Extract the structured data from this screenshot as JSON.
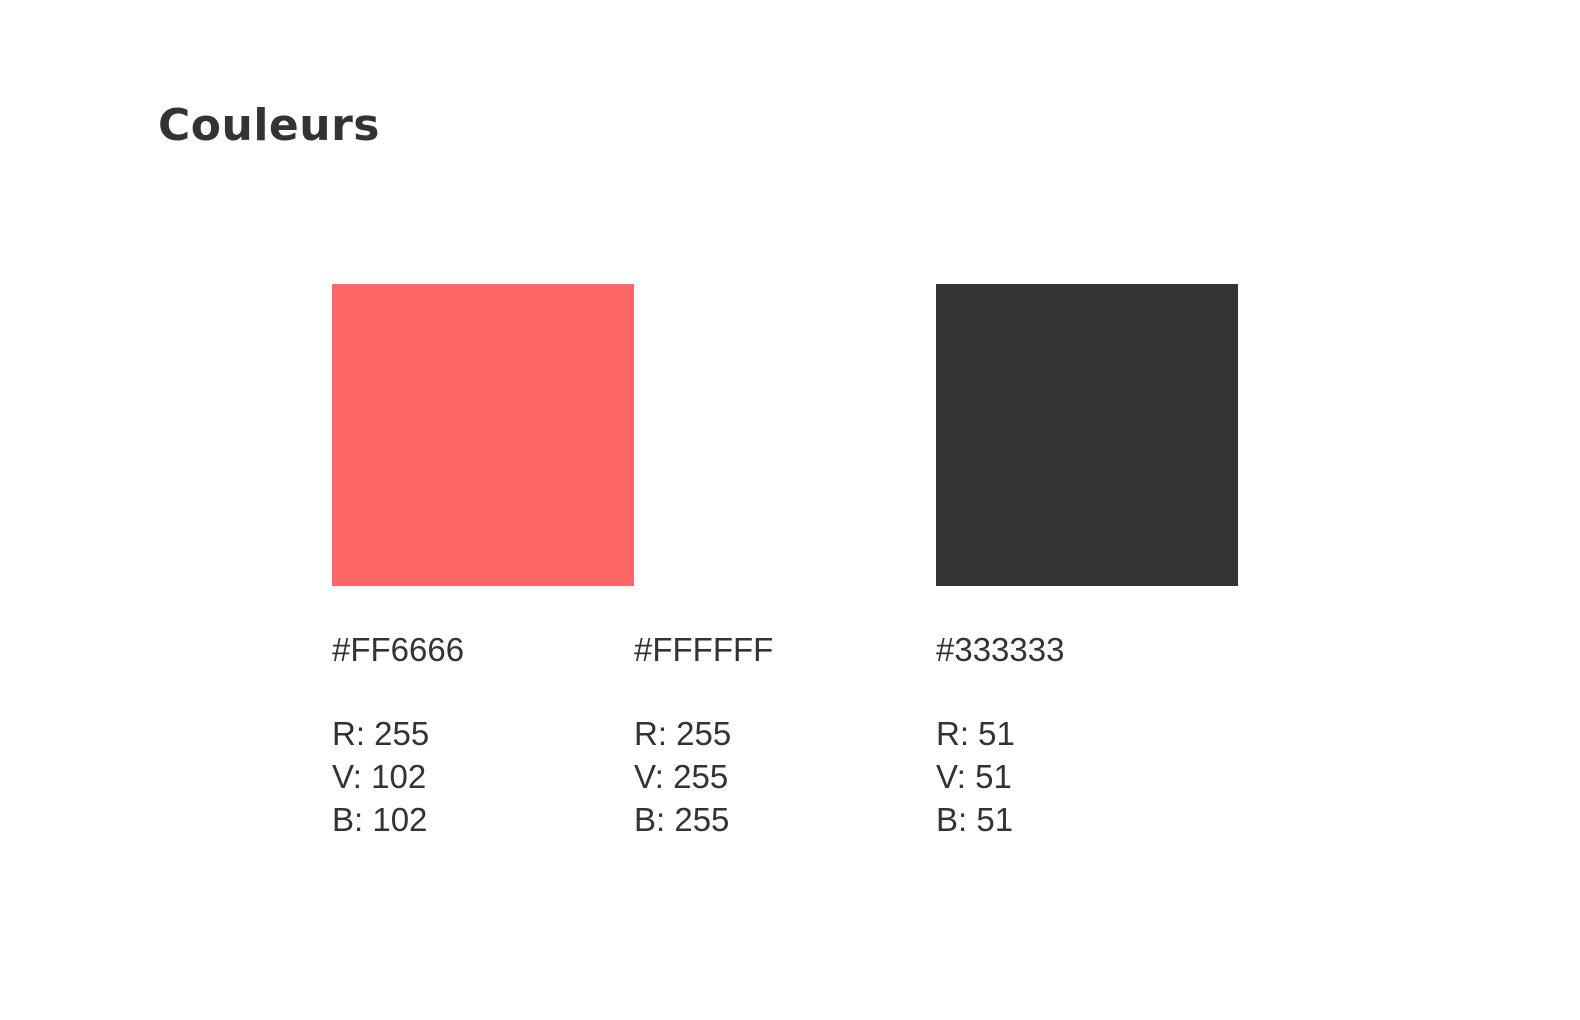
{
  "title": "Couleurs",
  "swatches": [
    {
      "color": "#FF6666",
      "hex": "#FF6666",
      "r": "R: 255",
      "v": "V: 102",
      "b": "B: 102"
    },
    {
      "color": "#FFFFFF",
      "hex": "#FFFFFF",
      "r": "R: 255",
      "v": "V: 255",
      "b": "B: 255"
    },
    {
      "color": "#333333",
      "hex": "#333333",
      "r": "R: 51",
      "v": "V: 51",
      "b": "B: 51"
    }
  ]
}
